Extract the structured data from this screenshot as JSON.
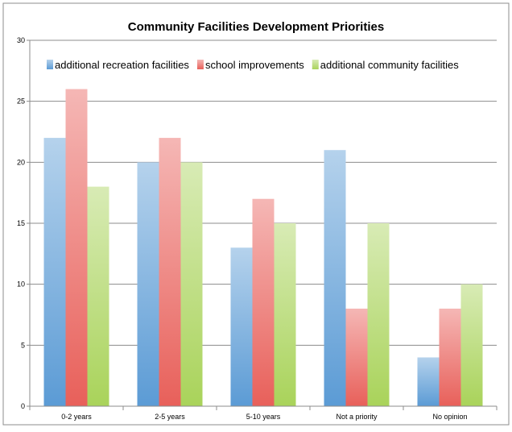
{
  "chart_data": {
    "type": "bar",
    "title": "Community Facilities Development Priorities",
    "xlabel": "",
    "ylabel": "",
    "ylim": [
      0,
      30
    ],
    "yticks": [
      0,
      5,
      10,
      15,
      20,
      25,
      30
    ],
    "grid": true,
    "legend_position": "top",
    "categories": [
      "0-2 years",
      "2-5 years",
      "5-10 years",
      "Not a priority",
      "No opinion"
    ],
    "series": [
      {
        "name": "additional recreation facilities",
        "color": "#5b9bd5",
        "values": [
          22,
          20,
          13,
          21,
          4
        ]
      },
      {
        "name": "school improvements",
        "color": "#e8605a",
        "values": [
          26,
          22,
          17,
          8,
          8
        ]
      },
      {
        "name": "additional community facilities",
        "color": "#a9d35a",
        "values": [
          18,
          20,
          15,
          15,
          10
        ]
      }
    ]
  }
}
